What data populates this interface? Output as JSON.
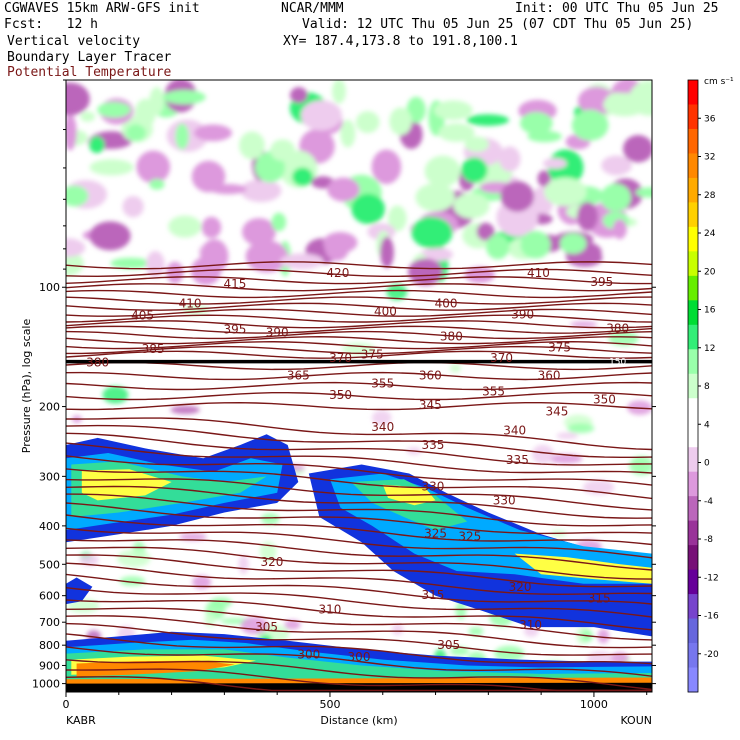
{
  "header": {
    "model": "CGWAVES 15km ARW-GFS init",
    "org": "NCAR/MMM",
    "init": "Init: 00 UTC Thu 05 Jun 25",
    "fcst": "Fcst:   12 h",
    "valid": "Valid: 12 UTC Thu 05 Jun 25 (07 CDT Thu 05 Jun 25)",
    "field1": "Vertical velocity",
    "field2": "Boundary Layer Tracer",
    "field3": "Potential Temperature",
    "xy": "XY= 187.4,173.8 to 191.8,100.1"
  },
  "colors": {
    "theta": "#7a1717",
    "tropopause": "#000000"
  },
  "chart_data": {
    "type": "heatmap",
    "xlabel": "Distance (km)",
    "ylabel": "Pressure (hPa), log scale",
    "x_ticks": [
      "0",
      "500",
      "1000"
    ],
    "x_tick_values": [
      0,
      500,
      1000
    ],
    "xlim": [
      0,
      1110
    ],
    "y_ticks": [
      "100",
      "200",
      "300",
      "400",
      "500",
      "600",
      "700",
      "800",
      "900",
      "1000"
    ],
    "y_tick_values": [
      100,
      200,
      300,
      400,
      500,
      600,
      700,
      800,
      900,
      1000
    ],
    "ylim": [
      1050,
      30
    ],
    "y_scale": "log",
    "left_endpoint": "KABR",
    "right_endpoint": "KOUN",
    "colorbar": {
      "unit": "cm s⁻¹",
      "labels": [
        "36",
        "32",
        "28",
        "24",
        "20",
        "16",
        "12",
        "8",
        "4",
        "0",
        "-4",
        "-8",
        "-12",
        "-16",
        "-20"
      ],
      "label_values": [
        36,
        32,
        28,
        24,
        20,
        16,
        12,
        8,
        4,
        0,
        -4,
        -8,
        -12,
        -16,
        -20
      ],
      "colors": [
        "#ff0000",
        "#ff3300",
        "#ff6600",
        "#ff8800",
        "#ffaa00",
        "#ffd000",
        "#ffff00",
        "#c8ff00",
        "#66ee00",
        "#00dd33",
        "#33ee77",
        "#99ffaa",
        "#ccffcc",
        "#ffffff",
        "#ffffff",
        "#eeccee",
        "#dd99dd",
        "#bb66bb",
        "#993399",
        "#771177",
        "#660099",
        "#7744cc",
        "#6666dd",
        "#7777ee",
        "#8888ff"
      ]
    },
    "theta_contour_labels": [
      {
        "text": "420",
        "x": 515,
        "p": 92
      },
      {
        "text": "410",
        "x": 235,
        "p": 110
      },
      {
        "text": "415",
        "x": 320,
        "p": 98
      },
      {
        "text": "405",
        "x": 145,
        "p": 118
      },
      {
        "text": "395",
        "x": 320,
        "p": 128
      },
      {
        "text": "390",
        "x": 400,
        "p": 130
      },
      {
        "text": "400",
        "x": 605,
        "p": 115
      },
      {
        "text": "400",
        "x": 720,
        "p": 110
      },
      {
        "text": "410",
        "x": 895,
        "p": 92
      },
      {
        "text": "395",
        "x": 1015,
        "p": 97
      },
      {
        "text": "390",
        "x": 865,
        "p": 117
      },
      {
        "text": "380",
        "x": 1045,
        "p": 127
      },
      {
        "text": "380",
        "x": 730,
        "p": 133
      },
      {
        "text": "375",
        "x": 935,
        "p": 142
      },
      {
        "text": "385",
        "x": 165,
        "p": 143
      },
      {
        "text": "380",
        "x": 60,
        "p": 155
      },
      {
        "text": "370",
        "x": 520,
        "p": 151
      },
      {
        "text": "375",
        "x": 580,
        "p": 148
      },
      {
        "text": "370",
        "x": 825,
        "p": 151
      },
      {
        "text": "365",
        "x": 440,
        "p": 167
      },
      {
        "text": "360",
        "x": 690,
        "p": 167
      },
      {
        "text": "360",
        "x": 915,
        "p": 167
      },
      {
        "text": "355",
        "x": 600,
        "p": 175
      },
      {
        "text": "355",
        "x": 810,
        "p": 183
      },
      {
        "text": "350",
        "x": 520,
        "p": 187
      },
      {
        "text": "350",
        "x": 1020,
        "p": 192
      },
      {
        "text": "345",
        "x": 690,
        "p": 198
      },
      {
        "text": "345",
        "x": 930,
        "p": 206
      },
      {
        "text": "340",
        "x": 600,
        "p": 225
      },
      {
        "text": "340",
        "x": 850,
        "p": 230
      },
      {
        "text": "335",
        "x": 695,
        "p": 250
      },
      {
        "text": "335",
        "x": 855,
        "p": 273
      },
      {
        "text": "330",
        "x": 695,
        "p": 318
      },
      {
        "text": "330",
        "x": 830,
        "p": 345
      },
      {
        "text": "325",
        "x": 700,
        "p": 418
      },
      {
        "text": "325",
        "x": 765,
        "p": 426
      },
      {
        "text": "320",
        "x": 390,
        "p": 493
      },
      {
        "text": "320",
        "x": 860,
        "p": 570
      },
      {
        "text": "315",
        "x": 695,
        "p": 598
      },
      {
        "text": "315",
        "x": 1010,
        "p": 610
      },
      {
        "text": "310",
        "x": 500,
        "p": 650
      },
      {
        "text": "310",
        "x": 880,
        "p": 712
      },
      {
        "text": "305",
        "x": 380,
        "p": 720
      },
      {
        "text": "305",
        "x": 725,
        "p": 800
      },
      {
        "text": "300",
        "x": 555,
        "p": 858
      },
      {
        "text": "300",
        "x": 460,
        "p": 844
      }
    ],
    "tropopause_label": {
      "text": "150",
      "x": 1045,
      "p": 154
    }
  }
}
